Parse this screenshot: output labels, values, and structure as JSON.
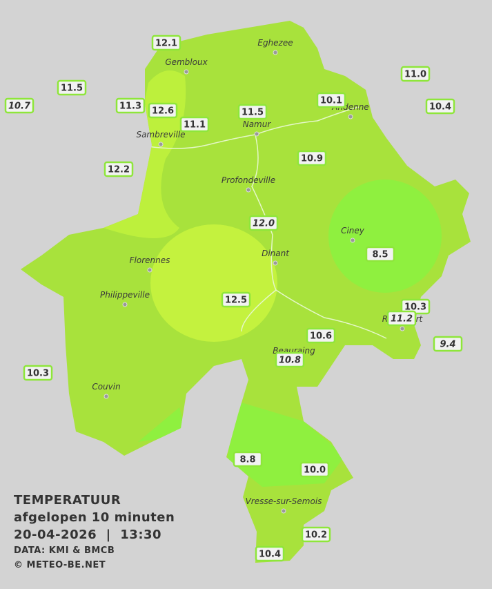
{
  "places": [
    "Eghezee",
    "Gembloux",
    "Andenne",
    "Namur",
    "Sambreville",
    "Profondeville",
    "Ciney",
    "Dinant",
    "Florennes",
    "Philippeville",
    "Rochefort",
    "Beauraing",
    "Couvin",
    "Vresse-sur-Semois"
  ],
  "stations": [
    {
      "value": "12.1",
      "italic": false
    },
    {
      "value": "11.5",
      "italic": false
    },
    {
      "value": "10.7",
      "italic": true
    },
    {
      "value": "11.3",
      "italic": false
    },
    {
      "value": "12.6",
      "italic": false
    },
    {
      "value": "11.1",
      "italic": false
    },
    {
      "value": "11.5",
      "italic": false
    },
    {
      "value": "10.1",
      "italic": false
    },
    {
      "value": "11.0",
      "italic": false
    },
    {
      "value": "10.4",
      "italic": false
    },
    {
      "value": "12.2",
      "italic": false
    },
    {
      "value": "10.9",
      "italic": false
    },
    {
      "value": "12.0",
      "italic": true
    },
    {
      "value": "8.5",
      "italic": false
    },
    {
      "value": "12.5",
      "italic": false
    },
    {
      "value": "10.3",
      "italic": false
    },
    {
      "value": "11.2",
      "italic": true
    },
    {
      "value": "10.6",
      "italic": false
    },
    {
      "value": "9.4",
      "italic": true
    },
    {
      "value": "10.8",
      "italic": true
    },
    {
      "value": "10.3",
      "italic": false
    },
    {
      "value": "8.8",
      "italic": false
    },
    {
      "value": "10.0",
      "italic": false
    },
    {
      "value": "10.2",
      "italic": false
    },
    {
      "value": "10.4",
      "italic": false
    }
  ],
  "legend": {
    "title": "TEMPERATUUR",
    "subtitle": "afgelopen 10 minuten",
    "datetime": "20-04-2026  |  13:30",
    "source": "DATA: KMI & BMCB",
    "credit": "© METEO-BE.NET"
  }
}
